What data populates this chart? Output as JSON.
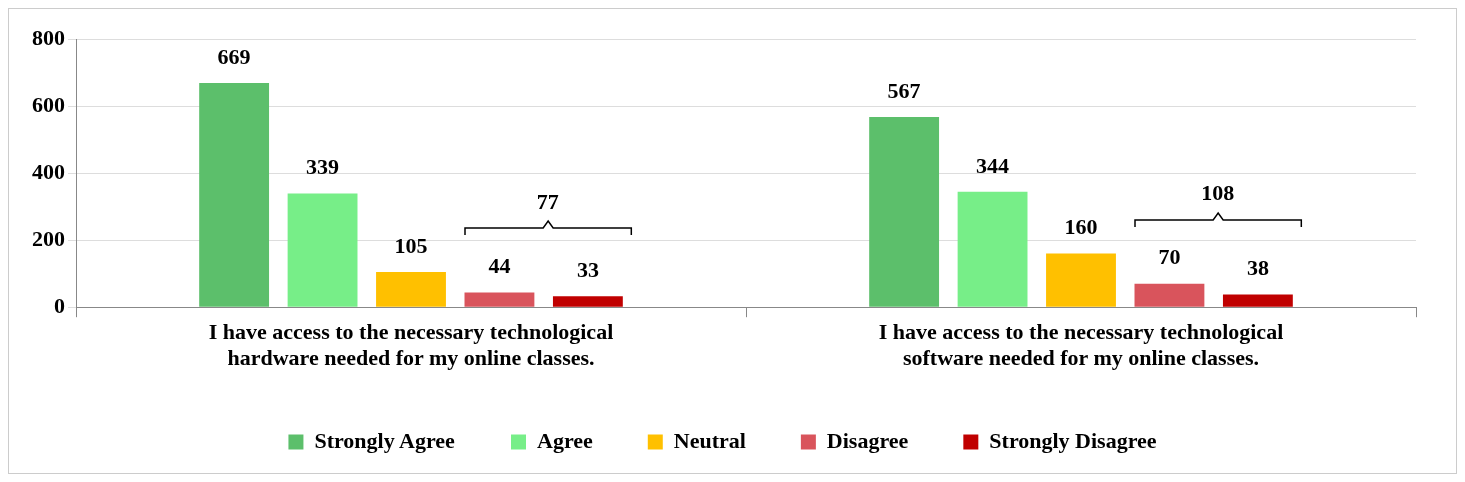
{
  "chart_data": {
    "type": "bar",
    "categories": [
      "I have access to the necessary technological hardware needed for my online classes.",
      "I have access to the necessary technological software needed for my online classes."
    ],
    "series": [
      {
        "name": "Strongly Agree",
        "color": "#5cbf6b",
        "values": [
          669,
          567
        ]
      },
      {
        "name": "Agree",
        "color": "#77ee88",
        "values": [
          339,
          344
        ]
      },
      {
        "name": "Neutral",
        "color": "#ffc000",
        "values": [
          105,
          160
        ]
      },
      {
        "name": "Disagree",
        "color": "#d9545c",
        "values": [
          44,
          70
        ]
      },
      {
        "name": "Strongly Disagree",
        "color": "#c00000",
        "values": [
          33,
          38
        ]
      }
    ],
    "ylim": [
      0,
      800
    ],
    "yticks": [
      0,
      200,
      400,
      600,
      800
    ],
    "grid": "y",
    "legend": "bottom",
    "data_labels": true,
    "annotations": [
      "77",
      "108"
    ]
  }
}
